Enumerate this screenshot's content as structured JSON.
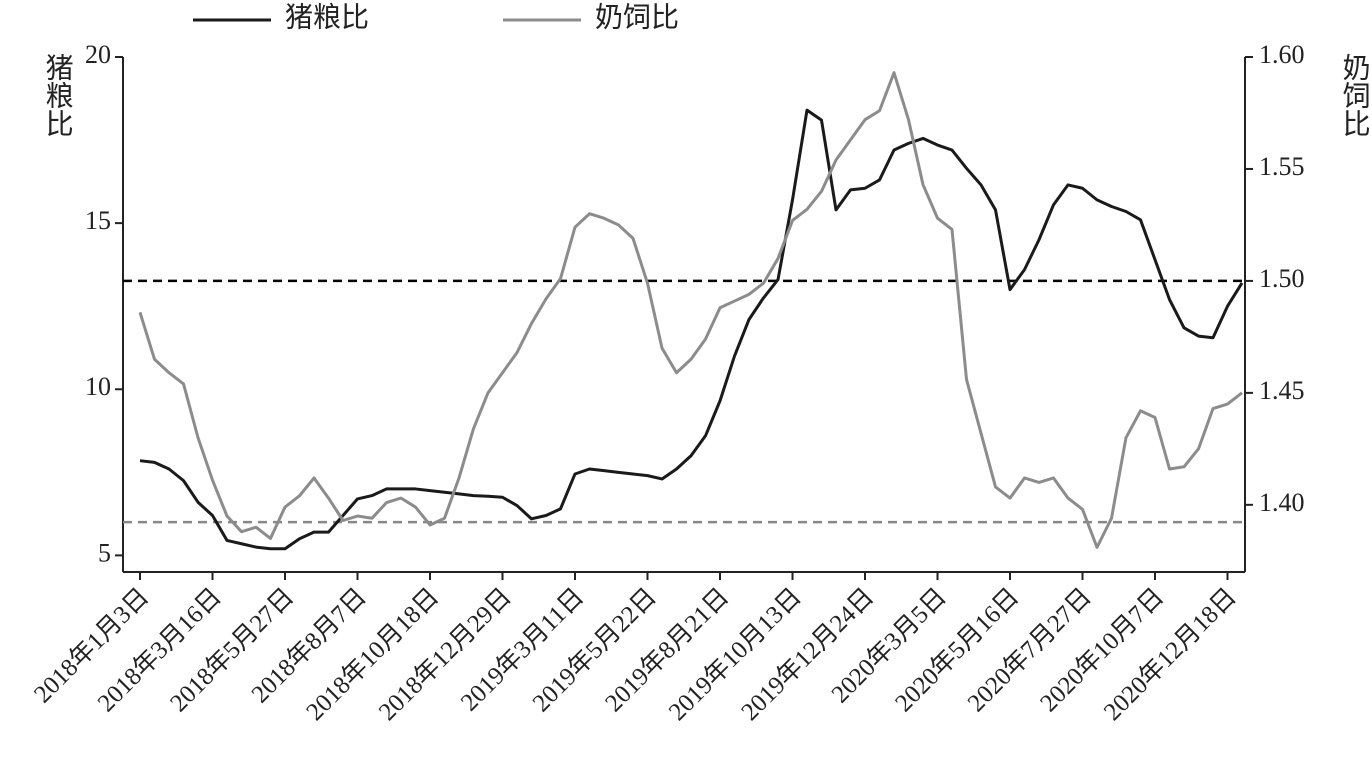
{
  "chart_data": {
    "type": "line",
    "categories": [
      "2018年1月3日",
      null,
      null,
      null,
      null,
      "2018年3月16日",
      null,
      null,
      null,
      null,
      "2018年5月27日",
      null,
      null,
      null,
      null,
      "2018年8月7日",
      null,
      null,
      null,
      null,
      "2018年10月18日",
      null,
      null,
      null,
      null,
      "2018年12月29日",
      null,
      null,
      null,
      null,
      "2019年3月11日",
      null,
      null,
      null,
      null,
      "2019年5月22日",
      null,
      null,
      null,
      null,
      "2019年8月21日",
      null,
      null,
      null,
      null,
      "2019年10月13日",
      null,
      null,
      null,
      null,
      "2019年12月24日",
      null,
      null,
      null,
      null,
      "2020年3月5日",
      null,
      null,
      null,
      null,
      "2020年5月16日",
      null,
      null,
      null,
      null,
      "2020年7月27日",
      null,
      null,
      null,
      null,
      "2020年10月7日",
      null,
      null,
      null,
      null,
      "2020年12月18日",
      null
    ],
    "series": [
      {
        "name": "猪粮比",
        "color": "#1a1a1a",
        "axis": "y",
        "values": [
          7.85,
          7.8,
          7.6,
          7.25,
          6.6,
          6.2,
          5.45,
          5.35,
          5.25,
          5.2,
          5.2,
          5.5,
          5.7,
          5.7,
          6.2,
          6.7,
          6.8,
          7.0,
          7.0,
          7.0,
          6.95,
          6.9,
          6.85,
          6.8,
          6.78,
          6.75,
          6.5,
          6.1,
          6.2,
          6.4,
          7.45,
          7.6,
          7.55,
          7.5,
          7.45,
          7.4,
          7.3,
          7.6,
          8.0,
          8.6,
          9.65,
          11.0,
          12.1,
          12.75,
          13.3,
          15.7,
          18.4,
          18.1,
          15.4,
          16.0,
          16.05,
          16.3,
          17.2,
          17.4,
          17.55,
          17.35,
          17.2,
          16.65,
          16.15,
          15.4,
          13.0,
          13.6,
          14.5,
          15.55,
          16.15,
          16.05,
          15.7,
          15.5,
          15.35,
          15.1,
          13.9,
          12.7,
          11.85,
          11.6,
          11.55,
          12.5,
          13.2
        ]
      },
      {
        "name": "奶饲比",
        "color": "#8c8c8c",
        "axis": "y2",
        "values": [
          1.486,
          1.465,
          1.459,
          1.454,
          1.43,
          1.411,
          1.395,
          1.388,
          1.39,
          1.385,
          1.399,
          1.404,
          1.412,
          1.403,
          1.393,
          1.395,
          1.394,
          1.401,
          1.403,
          1.399,
          1.391,
          1.394,
          1.412,
          1.434,
          1.45,
          1.459,
          1.468,
          1.481,
          1.492,
          1.501,
          1.524,
          1.53,
          1.528,
          1.525,
          1.519,
          1.499,
          1.47,
          1.459,
          1.465,
          1.474,
          1.488,
          1.491,
          1.494,
          1.499,
          1.51,
          1.527,
          1.532,
          1.54,
          1.554,
          1.563,
          1.572,
          1.576,
          1.593,
          1.572,
          1.543,
          1.528,
          1.523,
          1.456,
          1.432,
          1.408,
          1.403,
          1.412,
          1.41,
          1.412,
          1.403,
          1.398,
          1.381,
          1.394,
          1.43,
          1.442,
          1.439,
          1.416,
          1.417,
          1.425,
          1.443,
          1.445,
          1.45
        ]
      }
    ],
    "ylabel": "猪粮比",
    "y2label": "奶饲比",
    "ylim": [
      4.5,
      20
    ],
    "yticks": [
      5,
      10,
      15,
      20
    ],
    "y2lim": [
      1.37,
      1.6
    ],
    "y2ticks": [
      {
        "value": 1.4,
        "label": "1.40"
      },
      {
        "value": 1.45,
        "label": "1.45"
      },
      {
        "value": 1.5,
        "label": "1.50"
      },
      {
        "value": 1.55,
        "label": "1.55"
      },
      {
        "value": 1.6,
        "label": "1.60"
      }
    ],
    "reference_lines": [
      {
        "value": 1.5,
        "axis": "y2",
        "color": "#000000"
      },
      {
        "value": 6,
        "axis": "y",
        "color": "#888888"
      }
    ],
    "legend": "top"
  }
}
